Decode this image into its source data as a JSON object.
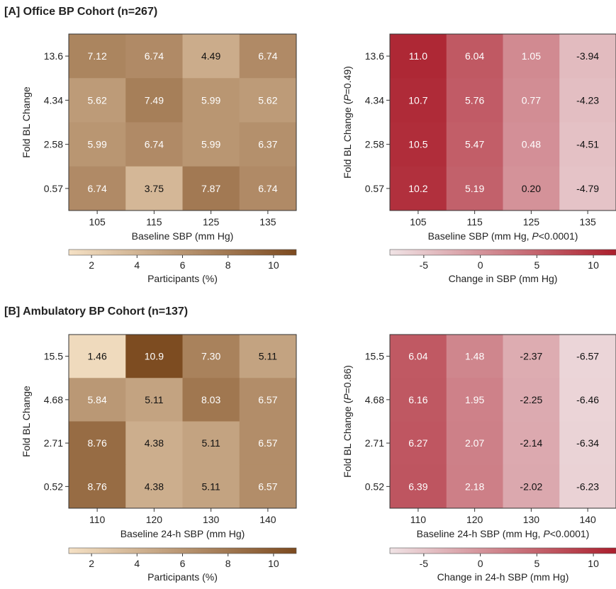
{
  "panels": [
    {
      "label": "[A]  Office BP Cohort (n=267)"
    },
    {
      "label": "[B]  Ambulatory BP Cohort (n=137)"
    }
  ],
  "colorbars": {
    "participants": {
      "ticks": [
        "2",
        "4",
        "6",
        "8",
        "10"
      ],
      "tick_values": [
        2,
        4,
        6,
        8,
        10
      ],
      "min": 1,
      "max": 11,
      "colors": [
        "#f5e1c5",
        "#7c4a1f"
      ]
    },
    "change": {
      "ticks": [
        "-5",
        "0",
        "5",
        "10"
      ],
      "tick_values": [
        -5,
        0,
        5,
        10
      ],
      "min": -8,
      "max": 12,
      "colors": [
        "#f0e3e5",
        "#ab1e2c"
      ]
    }
  },
  "chart_data": [
    {
      "type": "heatmap",
      "panel": "A",
      "xlabel": "Baseline SBP (mm Hg)",
      "ylabel": "Fold BL Change",
      "x_categories": [
        "105",
        "115",
        "125",
        "135"
      ],
      "y_categories": [
        "13.6",
        "4.34",
        "2.58",
        "0.57"
      ],
      "values": [
        [
          7.12,
          6.74,
          4.49,
          6.74
        ],
        [
          5.62,
          7.49,
          5.99,
          5.62
        ],
        [
          5.99,
          6.74,
          5.99,
          6.37
        ],
        [
          6.74,
          3.75,
          7.87,
          6.74
        ]
      ],
      "value_labels": [
        [
          "7.12",
          "6.74",
          "4.49",
          "6.74"
        ],
        [
          "5.62",
          "7.49",
          "5.99",
          "5.62"
        ],
        [
          "5.99",
          "6.74",
          "5.99",
          "6.37"
        ],
        [
          "6.74",
          "3.75",
          "7.87",
          "6.74"
        ]
      ],
      "colorbar": "participants",
      "colorbar_label": "Participants (%)"
    },
    {
      "type": "heatmap",
      "panel": "A",
      "xlabel_parts": [
        "Baseline SBP (mm Hg, ",
        "P",
        "<0.0001)"
      ],
      "ylabel_parts": [
        "Fold BL Change (",
        "P",
        "=0.49)"
      ],
      "x_categories": [
        "105",
        "115",
        "125",
        "135"
      ],
      "y_categories": [
        "13.6",
        "4.34",
        "2.58",
        "0.57"
      ],
      "values": [
        [
          11.0,
          6.04,
          1.05,
          -3.94
        ],
        [
          10.7,
          5.76,
          0.77,
          -4.23
        ],
        [
          10.5,
          5.47,
          0.48,
          -4.51
        ],
        [
          10.2,
          5.19,
          0.2,
          -4.79
        ]
      ],
      "value_labels": [
        [
          "11.0",
          "6.04",
          "1.05",
          "-3.94"
        ],
        [
          "10.7",
          "5.76",
          "0.77",
          "-4.23"
        ],
        [
          "10.5",
          "5.47",
          "0.48",
          "-4.51"
        ],
        [
          "10.2",
          "5.19",
          "0.20",
          "-4.79"
        ]
      ],
      "colorbar": "change",
      "colorbar_label": "Change in SBP (mm Hg)"
    },
    {
      "type": "heatmap",
      "panel": "B",
      "xlabel": "Baseline 24-h SBP (mm Hg)",
      "ylabel": "Fold BL Change",
      "x_categories": [
        "110",
        "120",
        "130",
        "140"
      ],
      "y_categories": [
        "15.5",
        "4.68",
        "2.71",
        "0.52"
      ],
      "values": [
        [
          1.46,
          10.9,
          7.3,
          5.11
        ],
        [
          5.84,
          5.11,
          8.03,
          6.57
        ],
        [
          8.76,
          4.38,
          5.11,
          6.57
        ],
        [
          8.76,
          4.38,
          5.11,
          6.57
        ]
      ],
      "value_labels": [
        [
          "1.46",
          "10.9",
          "7.30",
          "5.11"
        ],
        [
          "5.84",
          "5.11",
          "8.03",
          "6.57"
        ],
        [
          "8.76",
          "4.38",
          "5.11",
          "6.57"
        ],
        [
          "8.76",
          "4.38",
          "5.11",
          "6.57"
        ]
      ],
      "colorbar": "participants",
      "colorbar_label": "Participants (%)"
    },
    {
      "type": "heatmap",
      "panel": "B",
      "xlabel_parts": [
        "Baseline 24-h SBP (mm Hg, ",
        "P",
        "<0.0001)"
      ],
      "ylabel_parts": [
        "Fold BL Change (",
        "P",
        "=0.86)"
      ],
      "x_categories": [
        "110",
        "120",
        "130",
        "140"
      ],
      "y_categories": [
        "15.5",
        "4.68",
        "2.71",
        "0.52"
      ],
      "values": [
        [
          6.04,
          1.48,
          -2.37,
          -6.57
        ],
        [
          6.16,
          1.95,
          -2.25,
          -6.46
        ],
        [
          6.27,
          2.07,
          -2.14,
          -6.34
        ],
        [
          6.39,
          2.18,
          -2.02,
          -6.23
        ]
      ],
      "value_labels": [
        [
          "6.04",
          "1.48",
          "-2.37",
          "-6.57"
        ],
        [
          "6.16",
          "1.95",
          "-2.25",
          "-6.46"
        ],
        [
          "6.27",
          "2.07",
          "-2.14",
          "-6.34"
        ],
        [
          "6.39",
          "2.18",
          "-2.02",
          "-6.23"
        ]
      ],
      "colorbar": "change",
      "colorbar_label": "Change in 24-h SBP (mm Hg)"
    }
  ]
}
